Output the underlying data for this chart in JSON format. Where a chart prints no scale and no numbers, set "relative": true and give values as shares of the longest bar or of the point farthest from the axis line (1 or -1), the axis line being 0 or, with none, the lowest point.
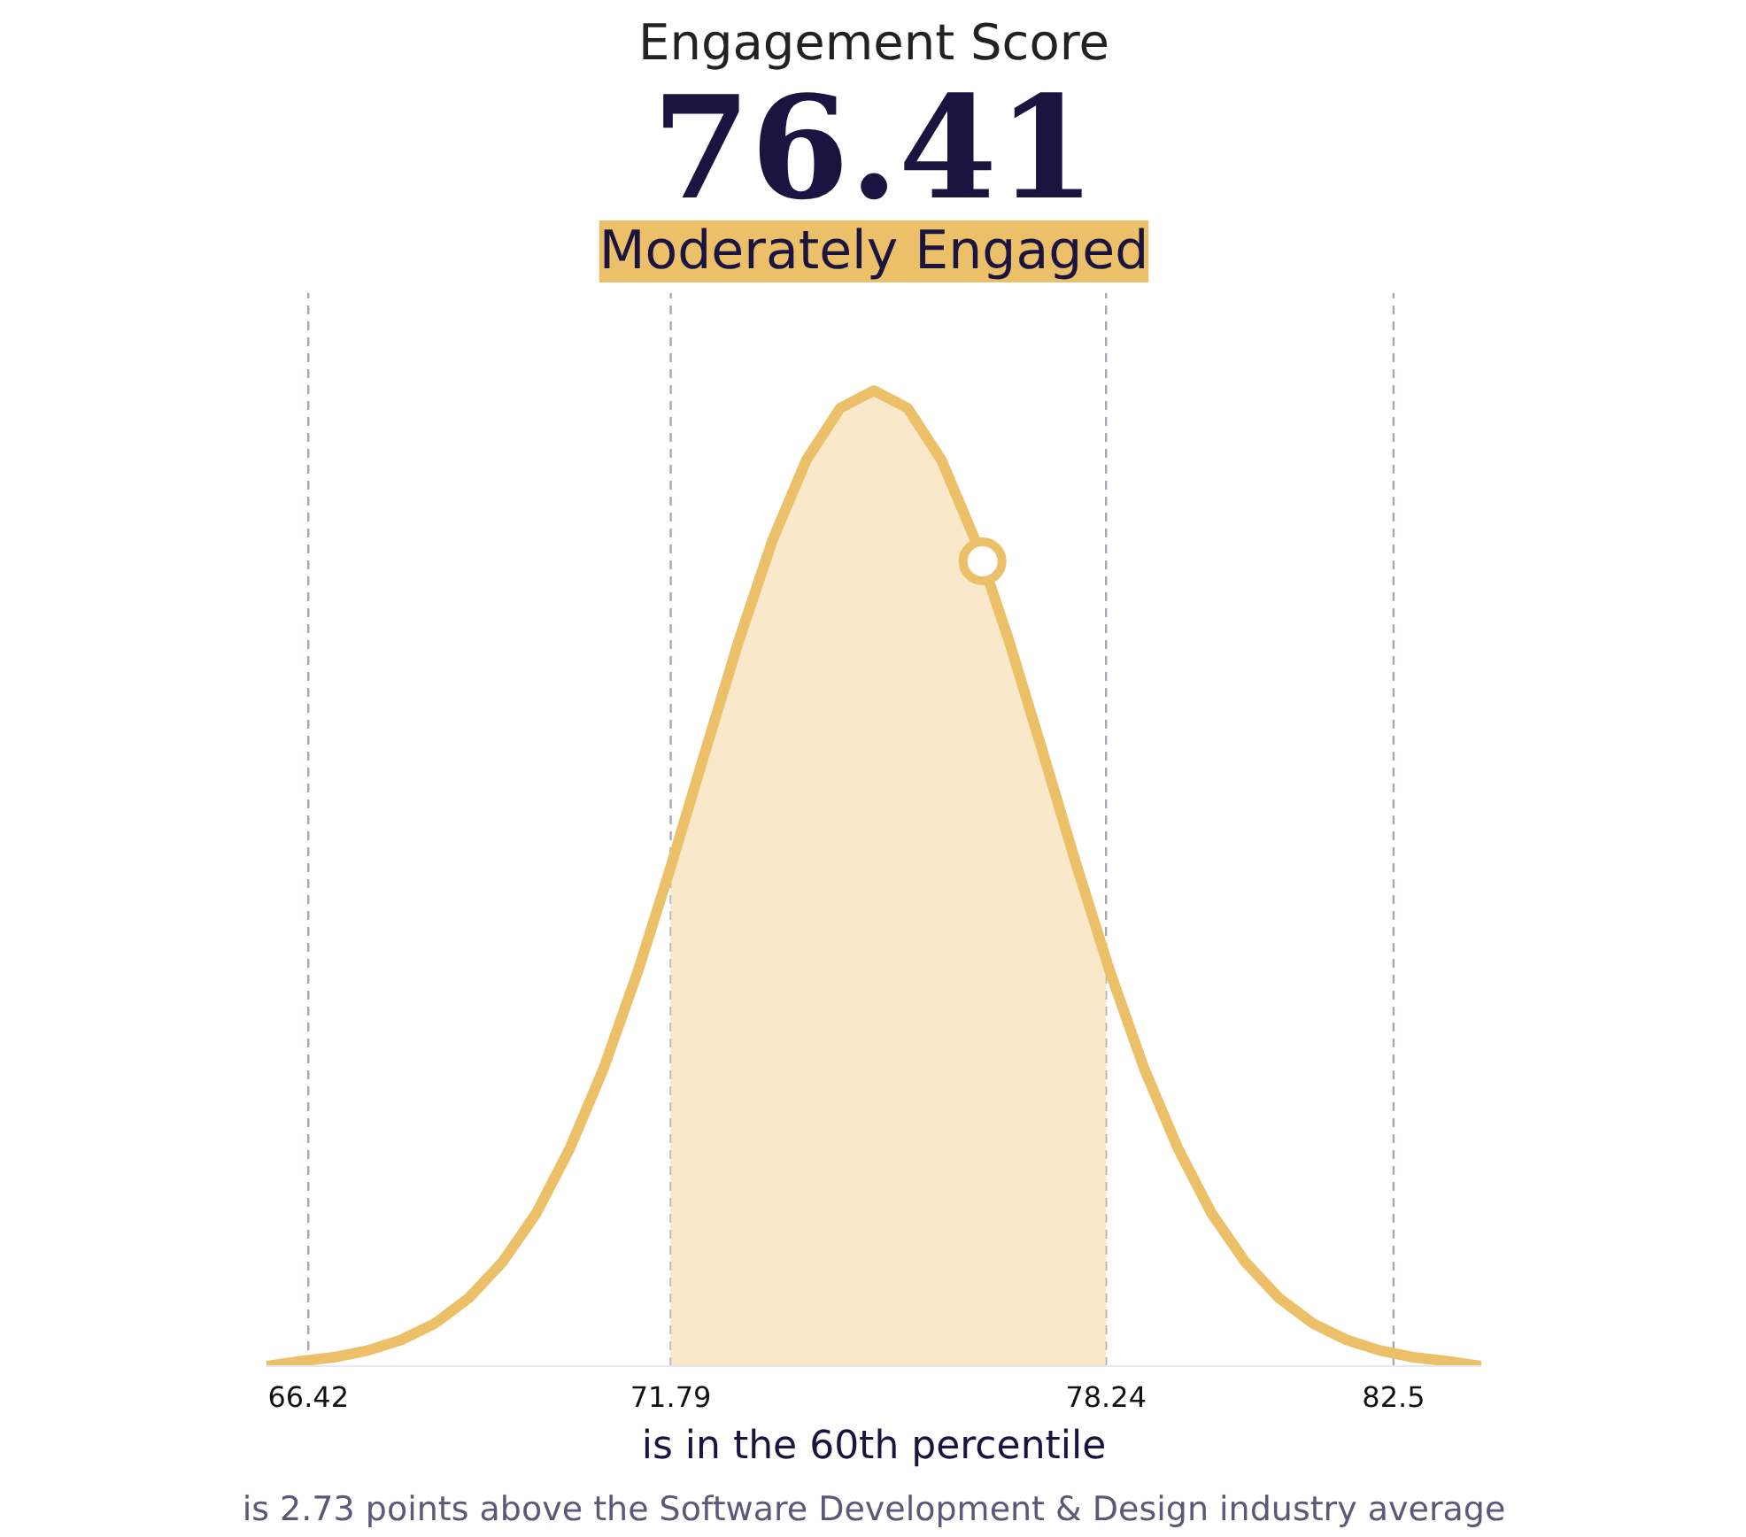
{
  "chart_data": {
    "type": "line",
    "title": "Engagement Score",
    "subtitle": "76.41",
    "relative": true,
    "grid": false,
    "xlim": [
      65.8,
      83.8
    ],
    "xticks": [
      66.42,
      71.79,
      78.24,
      82.5
    ],
    "ref_lines": [
      {
        "axis": "x",
        "value": 66.42,
        "color": "#a9a6b8",
        "line_style": "dashed"
      },
      {
        "axis": "x",
        "value": 71.79,
        "color": "#a9a6b8",
        "line_style": "dashed"
      },
      {
        "axis": "x",
        "value": 78.24,
        "color": "#a9a6b8",
        "line_style": "dashed"
      },
      {
        "axis": "x",
        "value": 82.5,
        "color": "#a9a6b8",
        "line_style": "dashed"
      }
    ],
    "series": [
      {
        "type": "area",
        "color": "#f7e4bd",
        "x": [
          71.79,
          72.3,
          72.8,
          73.3,
          73.8,
          74.3,
          74.8,
          75.3,
          75.8,
          76.3,
          76.8,
          77.3,
          77.8,
          78.24
        ],
        "values": [
          0.51,
          0.63,
          0.74,
          0.85,
          0.93,
          0.98,
          1,
          0.98,
          0.93,
          0.85,
          0.74,
          0.63,
          0.51,
          0.42
        ]
      },
      {
        "color": "#ecc068",
        "x": [
          65.8,
          66.3,
          66.8,
          67.3,
          67.8,
          68.3,
          68.8,
          69.3,
          69.8,
          70.3,
          70.8,
          71.3,
          71.8,
          72.3,
          72.8,
          73.3,
          73.8,
          74.3,
          74.8,
          75.3,
          75.8,
          76.3,
          76.8,
          77.3,
          77.8,
          78.3,
          78.8,
          79.3,
          79.8,
          80.3,
          80.8,
          81.3,
          81.8,
          82.3,
          82.8,
          83.3,
          83.8
        ],
        "values": [
          0,
          0.005,
          0.009,
          0.016,
          0.027,
          0.044,
          0.07,
          0.107,
          0.157,
          0.224,
          0.306,
          0.404,
          0.514,
          0.63,
          0.744,
          0.847,
          0.929,
          0.982,
          1,
          0.982,
          0.929,
          0.847,
          0.744,
          0.63,
          0.514,
          0.404,
          0.306,
          0.224,
          0.157,
          0.107,
          0.07,
          0.044,
          0.027,
          0.016,
          0.009,
          0.005,
          0
        ]
      },
      {
        "type": "scatter",
        "marker": "circle",
        "color": "#ecc068",
        "x": [
          76.41
        ],
        "values": [
          0.825
        ]
      }
    ],
    "annotations": [
      "Moderately Engaged",
      "is in the 60th percentile",
      "is 2.73 points above the Software Development & Design industry average"
    ]
  }
}
